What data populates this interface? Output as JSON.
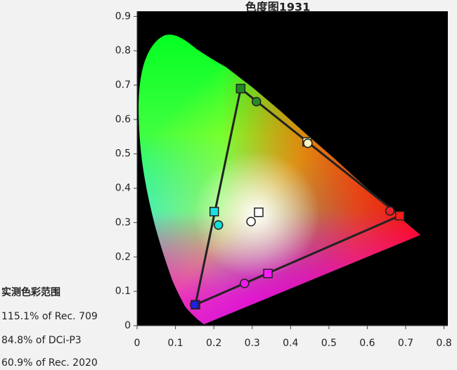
{
  "chart_data": {
    "type": "scatter",
    "title": "色度图1931",
    "xlim": [
      0,
      0.81
    ],
    "ylim": [
      0,
      0.915
    ],
    "xticks": [
      0,
      0.1,
      0.2,
      0.3,
      0.4,
      0.5,
      0.6,
      0.7,
      0.8
    ],
    "yticks": [
      0,
      0.1,
      0.2,
      0.3,
      0.4,
      0.5,
      0.6,
      0.7,
      0.8,
      0.9
    ],
    "background": "#000000",
    "series": [
      {
        "marker": "square",
        "line": "closed",
        "line_color": "#222222",
        "x": [
          0.685,
          0.27,
          0.152
        ],
        "values": [
          0.32,
          0.69,
          0.061
        ],
        "colors": [
          "#ff1a1a",
          "#1f8a1f",
          "#1c1cf0"
        ]
      },
      {
        "marker": "square",
        "x": [
          0.443,
          0.201,
          0.341,
          0.317
        ],
        "values": [
          0.535,
          0.332,
          0.152,
          0.33
        ],
        "colors": [
          "#f7f3b0",
          "#18e0e8",
          "#ff1aff",
          "#ffffff"
        ]
      },
      {
        "marker": "circle",
        "x": [
          0.659,
          0.311,
          0.15,
          0.445,
          0.212,
          0.28,
          0.297
        ],
        "values": [
          0.334,
          0.652,
          0.061,
          0.531,
          0.293,
          0.123,
          0.303
        ],
        "colors": [
          "#e8202a",
          "#2a8a2a",
          "#2020e0",
          "#f7f3c0",
          "#12e0d8",
          "#ee1ae8",
          "#ffffff"
        ]
      }
    ],
    "annotations": [
      "实测色彩范围",
      "115.1% of Rec. 709",
      "84.8% of DCi-P3",
      "60.9% of Rec. 2020"
    ]
  }
}
